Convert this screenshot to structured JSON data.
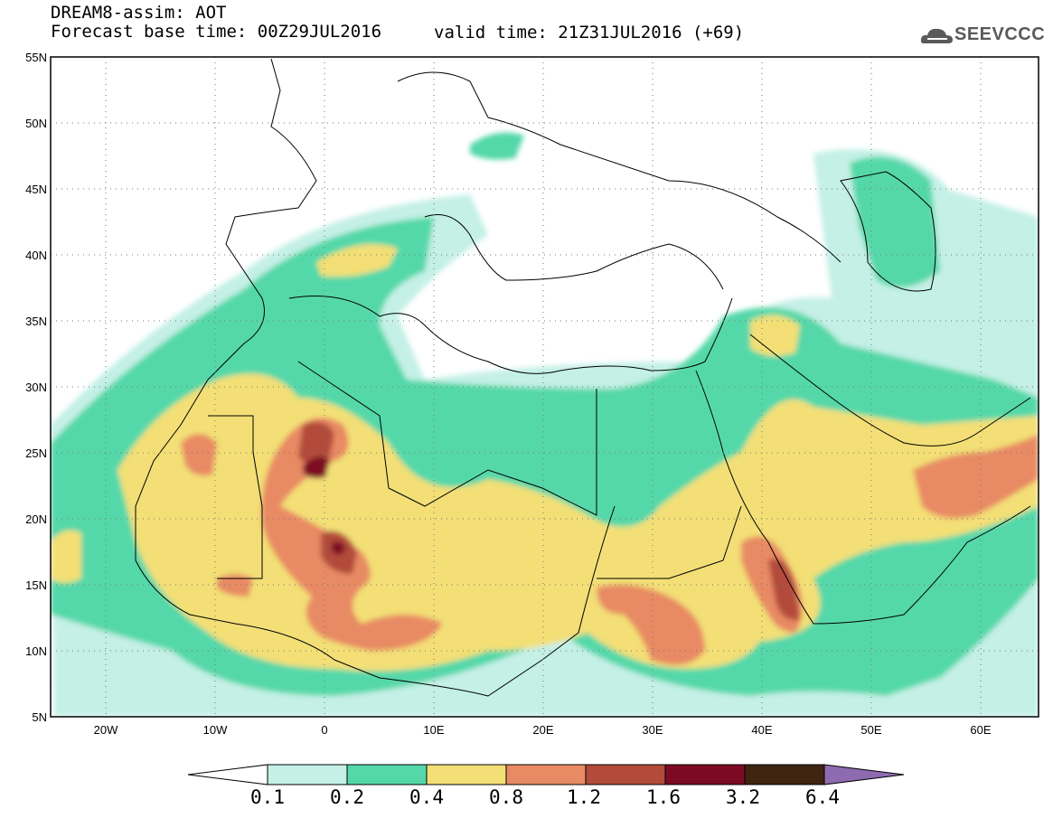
{
  "header": {
    "title": "DREAM8-assim: AOT",
    "base_time": "Forecast base time: 00Z29JUL2016",
    "valid_time": "valid time: 21Z31JUL2016 (+69)",
    "logo": "SEEVCCC"
  },
  "map": {
    "lon_range": [
      -25,
      65
    ],
    "lat_range": [
      5,
      55
    ],
    "lat_labels": [
      "5N",
      "10N",
      "15N",
      "20N",
      "25N",
      "30N",
      "35N",
      "40N",
      "45N",
      "50N",
      "55N"
    ],
    "lon_labels": [
      "20W",
      "10W",
      "0",
      "10E",
      "20E",
      "30E",
      "40E",
      "50E",
      "60E"
    ],
    "grid": "dotted"
  },
  "colorbar": {
    "colors": [
      "#ffffff",
      "#c4f0e6",
      "#55d8a9",
      "#f3df76",
      "#e88a64",
      "#b24b3a",
      "#7d0a23",
      "#3f2411",
      "#8e6bb0"
    ],
    "labels": [
      "0.1",
      "0.2",
      "0.4",
      "0.8",
      "1.2",
      "1.6",
      "3.2",
      "6.4"
    ]
  }
}
